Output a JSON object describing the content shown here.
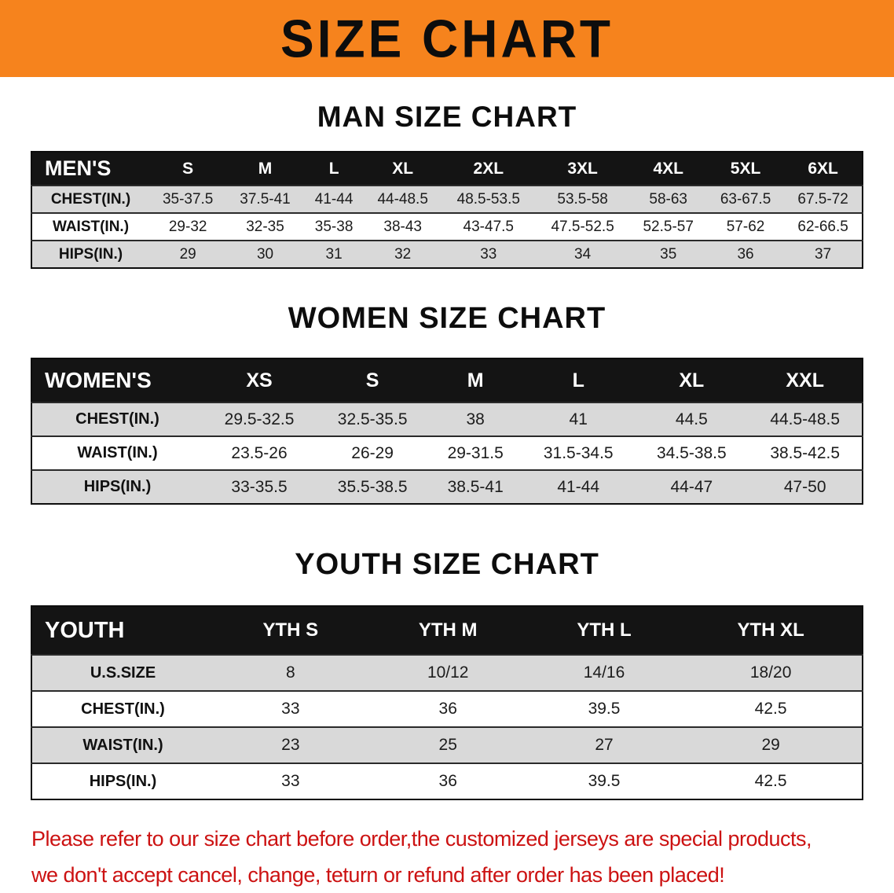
{
  "banner": {
    "title": "SIZE CHART"
  },
  "colors": {
    "banner_bg": "#F6831D",
    "table_header_bg": "#141414",
    "row_shade": "#D9D9D9",
    "notice_text": "#CC1212"
  },
  "sections": [
    {
      "id": "men",
      "heading": "MAN SIZE CHART",
      "table": {
        "label": "MEN'S",
        "columns": [
          "S",
          "M",
          "L",
          "XL",
          "2XL",
          "3XL",
          "4XL",
          "5XL",
          "6XL"
        ],
        "rows": [
          {
            "label": "CHEST(IN.)",
            "values": [
              "35-37.5",
              "37.5-41",
              "41-44",
              "44-48.5",
              "48.5-53.5",
              "53.5-58",
              "58-63",
              "63-67.5",
              "67.5-72"
            ]
          },
          {
            "label": "WAIST(IN.)",
            "values": [
              "29-32",
              "32-35",
              "35-38",
              "38-43",
              "43-47.5",
              "47.5-52.5",
              "52.5-57",
              "57-62",
              "62-66.5"
            ]
          },
          {
            "label": "HIPS(IN.)",
            "values": [
              "29",
              "30",
              "31",
              "32",
              "33",
              "34",
              "35",
              "36",
              "37"
            ]
          }
        ]
      }
    },
    {
      "id": "women",
      "heading": "WOMEN SIZE CHART",
      "table": {
        "label": "WOMEN'S",
        "columns": [
          "XS",
          "S",
          "M",
          "L",
          "XL",
          "XXL"
        ],
        "rows": [
          {
            "label": "CHEST(IN.)",
            "values": [
              "29.5-32.5",
              "32.5-35.5",
              "38",
              "41",
              "44.5",
              "44.5-48.5"
            ]
          },
          {
            "label": "WAIST(IN.)",
            "values": [
              "23.5-26",
              "26-29",
              "29-31.5",
              "31.5-34.5",
              "34.5-38.5",
              "38.5-42.5"
            ]
          },
          {
            "label": "HIPS(IN.)",
            "values": [
              "33-35.5",
              "35.5-38.5",
              "38.5-41",
              "41-44",
              "44-47",
              "47-50"
            ]
          }
        ]
      }
    },
    {
      "id": "youth",
      "heading": "YOUTH SIZE CHART",
      "table": {
        "label": "YOUTH",
        "columns": [
          "YTH S",
          "YTH M",
          "YTH L",
          "YTH XL"
        ],
        "rows": [
          {
            "label": "U.S.SIZE",
            "values": [
              "8",
              "10/12",
              "14/16",
              "18/20"
            ]
          },
          {
            "label": "CHEST(IN.)",
            "values": [
              "33",
              "36",
              "39.5",
              "42.5"
            ]
          },
          {
            "label": "WAIST(IN.)",
            "values": [
              "23",
              "25",
              "27",
              "29"
            ]
          },
          {
            "label": "HIPS(IN.)",
            "values": [
              "33",
              "36",
              "39.5",
              "42.5"
            ]
          }
        ]
      }
    }
  ],
  "footer": {
    "line1": "Please refer to our size chart before order,the customized jerseys are special products,",
    "line2": "we don't accept cancel, change, teturn or refund after order has been placed!"
  }
}
